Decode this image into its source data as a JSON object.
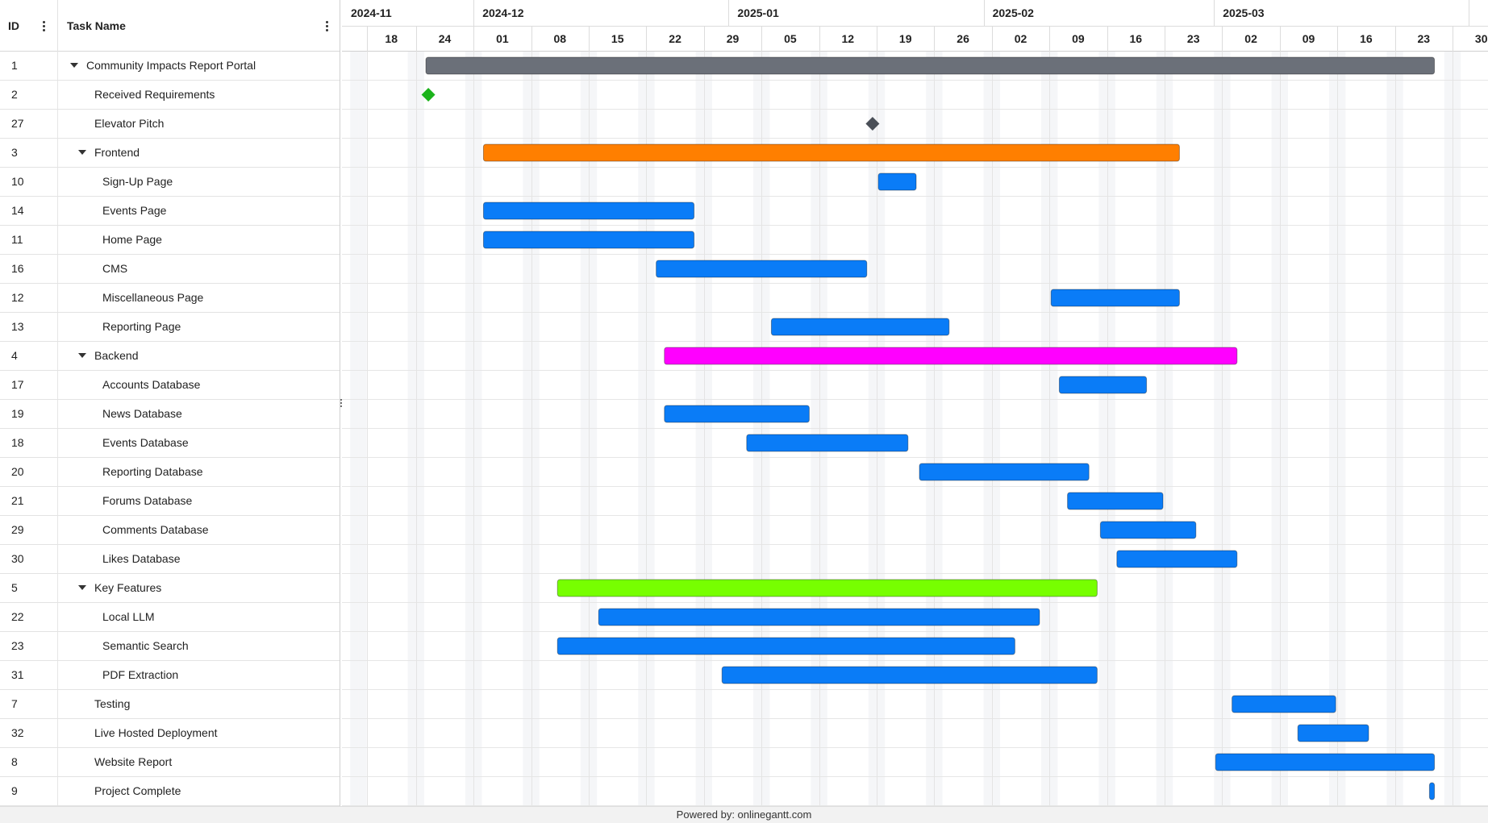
{
  "grid": {
    "id_header": "ID",
    "name_header": "Task Name"
  },
  "timeline": {
    "months": [
      "2024-11",
      "2024-12",
      "2025-01",
      "2025-02",
      "2025-03"
    ],
    "weeks": [
      "18",
      "24",
      "01",
      "08",
      "15",
      "22",
      "29",
      "05",
      "12",
      "19",
      "26",
      "02",
      "09",
      "16",
      "23",
      "02",
      "09",
      "16",
      "23",
      "30"
    ]
  },
  "colors": {
    "summary": "#6b7079",
    "task": "#0a7cf7",
    "frontend": "#ff7f00",
    "backend": "#ff00ff",
    "key_features": "#77ff00",
    "milestone_green": "#1bb31b",
    "milestone_dark": "#4a4f57"
  },
  "tasks": [
    {
      "id": "1",
      "name": "Community Impacts Report Portal",
      "level": 0,
      "expanded": true,
      "type": "project",
      "start": "2024-11-25",
      "end": "2025-03-27",
      "color": "#6b7079"
    },
    {
      "id": "2",
      "name": "Received Requirements",
      "level": 1,
      "type": "milestone",
      "start": "2024-11-25",
      "color": "#1bb31b"
    },
    {
      "id": "27",
      "name": "Elevator Pitch",
      "level": 1,
      "type": "milestone",
      "start": "2025-01-18",
      "color": "#4a4f57"
    },
    {
      "id": "3",
      "name": "Frontend",
      "level": 1,
      "expanded": true,
      "type": "project",
      "start": "2024-12-02",
      "end": "2025-02-24",
      "color": "#ff7f00"
    },
    {
      "id": "10",
      "name": "Sign-Up Page",
      "level": 2,
      "type": "task",
      "start": "2025-01-19",
      "end": "2025-01-23",
      "color": "#0a7cf7"
    },
    {
      "id": "14",
      "name": "Events Page",
      "level": 2,
      "type": "task",
      "start": "2024-12-02",
      "end": "2024-12-27",
      "color": "#0a7cf7"
    },
    {
      "id": "11",
      "name": "Home Page",
      "level": 2,
      "type": "task",
      "start": "2024-12-02",
      "end": "2024-12-27",
      "color": "#0a7cf7"
    },
    {
      "id": "16",
      "name": "CMS",
      "level": 2,
      "type": "task",
      "start": "2024-12-23",
      "end": "2025-01-17",
      "color": "#0a7cf7"
    },
    {
      "id": "12",
      "name": "Miscellaneous Page",
      "level": 2,
      "type": "task",
      "start": "2025-02-09",
      "end": "2025-02-24",
      "color": "#0a7cf7"
    },
    {
      "id": "13",
      "name": "Reporting Page",
      "level": 2,
      "type": "task",
      "start": "2025-01-06",
      "end": "2025-01-27",
      "color": "#0a7cf7"
    },
    {
      "id": "4",
      "name": "Backend",
      "level": 1,
      "expanded": true,
      "type": "project",
      "start": "2024-12-24",
      "end": "2025-03-03",
      "color": "#ff00ff"
    },
    {
      "id": "17",
      "name": "Accounts Database",
      "level": 2,
      "type": "task",
      "start": "2025-02-10",
      "end": "2025-02-20",
      "color": "#0a7cf7"
    },
    {
      "id": "19",
      "name": "News Database",
      "level": 2,
      "type": "task",
      "start": "2024-12-24",
      "end": "2025-01-10",
      "color": "#0a7cf7"
    },
    {
      "id": "18",
      "name": "Events Database",
      "level": 2,
      "type": "task",
      "start": "2025-01-03",
      "end": "2025-01-22",
      "color": "#0a7cf7"
    },
    {
      "id": "20",
      "name": "Reporting Database",
      "level": 2,
      "type": "task",
      "start": "2025-01-24",
      "end": "2025-02-13",
      "color": "#0a7cf7"
    },
    {
      "id": "21",
      "name": "Forums Database",
      "level": 2,
      "type": "task",
      "start": "2025-02-11",
      "end": "2025-02-22",
      "color": "#0a7cf7"
    },
    {
      "id": "29",
      "name": "Comments Database",
      "level": 2,
      "type": "task",
      "start": "2025-02-15",
      "end": "2025-02-26",
      "color": "#0a7cf7"
    },
    {
      "id": "30",
      "name": "Likes Database",
      "level": 2,
      "type": "task",
      "start": "2025-02-17",
      "end": "2025-03-03",
      "color": "#0a7cf7"
    },
    {
      "id": "5",
      "name": "Key Features",
      "level": 1,
      "expanded": true,
      "type": "project",
      "start": "2024-12-11",
      "end": "2025-02-14",
      "color": "#77ff00"
    },
    {
      "id": "22",
      "name": "Local LLM",
      "level": 2,
      "type": "task",
      "start": "2024-12-16",
      "end": "2025-02-07",
      "color": "#0a7cf7"
    },
    {
      "id": "23",
      "name": "Semantic Search",
      "level": 2,
      "type": "task",
      "start": "2024-12-11",
      "end": "2025-02-04",
      "color": "#0a7cf7"
    },
    {
      "id": "31",
      "name": "PDF Extraction",
      "level": 2,
      "type": "task",
      "start": "2024-12-31",
      "end": "2025-02-14",
      "color": "#0a7cf7"
    },
    {
      "id": "7",
      "name": "Testing",
      "level": 1,
      "type": "task",
      "start": "2025-03-03",
      "end": "2025-03-15",
      "color": "#0a7cf7"
    },
    {
      "id": "32",
      "name": "Live Hosted Deployment",
      "level": 1,
      "type": "task",
      "start": "2025-03-11",
      "end": "2025-03-19",
      "color": "#0a7cf7"
    },
    {
      "id": "8",
      "name": "Website Report",
      "level": 1,
      "type": "task",
      "start": "2025-03-01",
      "end": "2025-03-27",
      "color": "#0a7cf7"
    },
    {
      "id": "9",
      "name": "Project Complete",
      "level": 1,
      "type": "task",
      "start": "2025-03-27",
      "end": "2025-03-27",
      "color": "#0a7cf7"
    }
  ],
  "footer": {
    "text": "Powered by: onlinegantt.com"
  }
}
